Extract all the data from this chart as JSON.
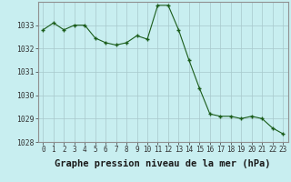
{
  "x": [
    0,
    1,
    2,
    3,
    4,
    5,
    6,
    7,
    8,
    9,
    10,
    11,
    12,
    13,
    14,
    15,
    16,
    17,
    18,
    19,
    20,
    21,
    22,
    23
  ],
  "y": [
    1032.8,
    1033.1,
    1032.8,
    1033.0,
    1033.0,
    1032.45,
    1032.25,
    1032.15,
    1032.25,
    1032.55,
    1032.4,
    1033.85,
    1033.85,
    1032.8,
    1031.5,
    1030.3,
    1029.2,
    1029.1,
    1029.1,
    1029.0,
    1029.1,
    1029.0,
    1028.6,
    1028.35
  ],
  "ylim": [
    1028,
    1034
  ],
  "yticks": [
    1028,
    1029,
    1030,
    1031,
    1032,
    1033
  ],
  "xticks": [
    0,
    1,
    2,
    3,
    4,
    5,
    6,
    7,
    8,
    9,
    10,
    11,
    12,
    13,
    14,
    15,
    16,
    17,
    18,
    19,
    20,
    21,
    22,
    23
  ],
  "xlabel": "Graphe pression niveau de la mer (hPa)",
  "line_color": "#1a5c1a",
  "marker_color": "#1a5c1a",
  "bg_color": "#c8eef0",
  "grid_major_color": "#a8c8cc",
  "grid_minor_color": "#b8d8dc",
  "border_color": "#909090",
  "xlabel_fontsize": 7.5,
  "tick_fontsize": 5.5,
  "ytick_fontsize": 5.8
}
